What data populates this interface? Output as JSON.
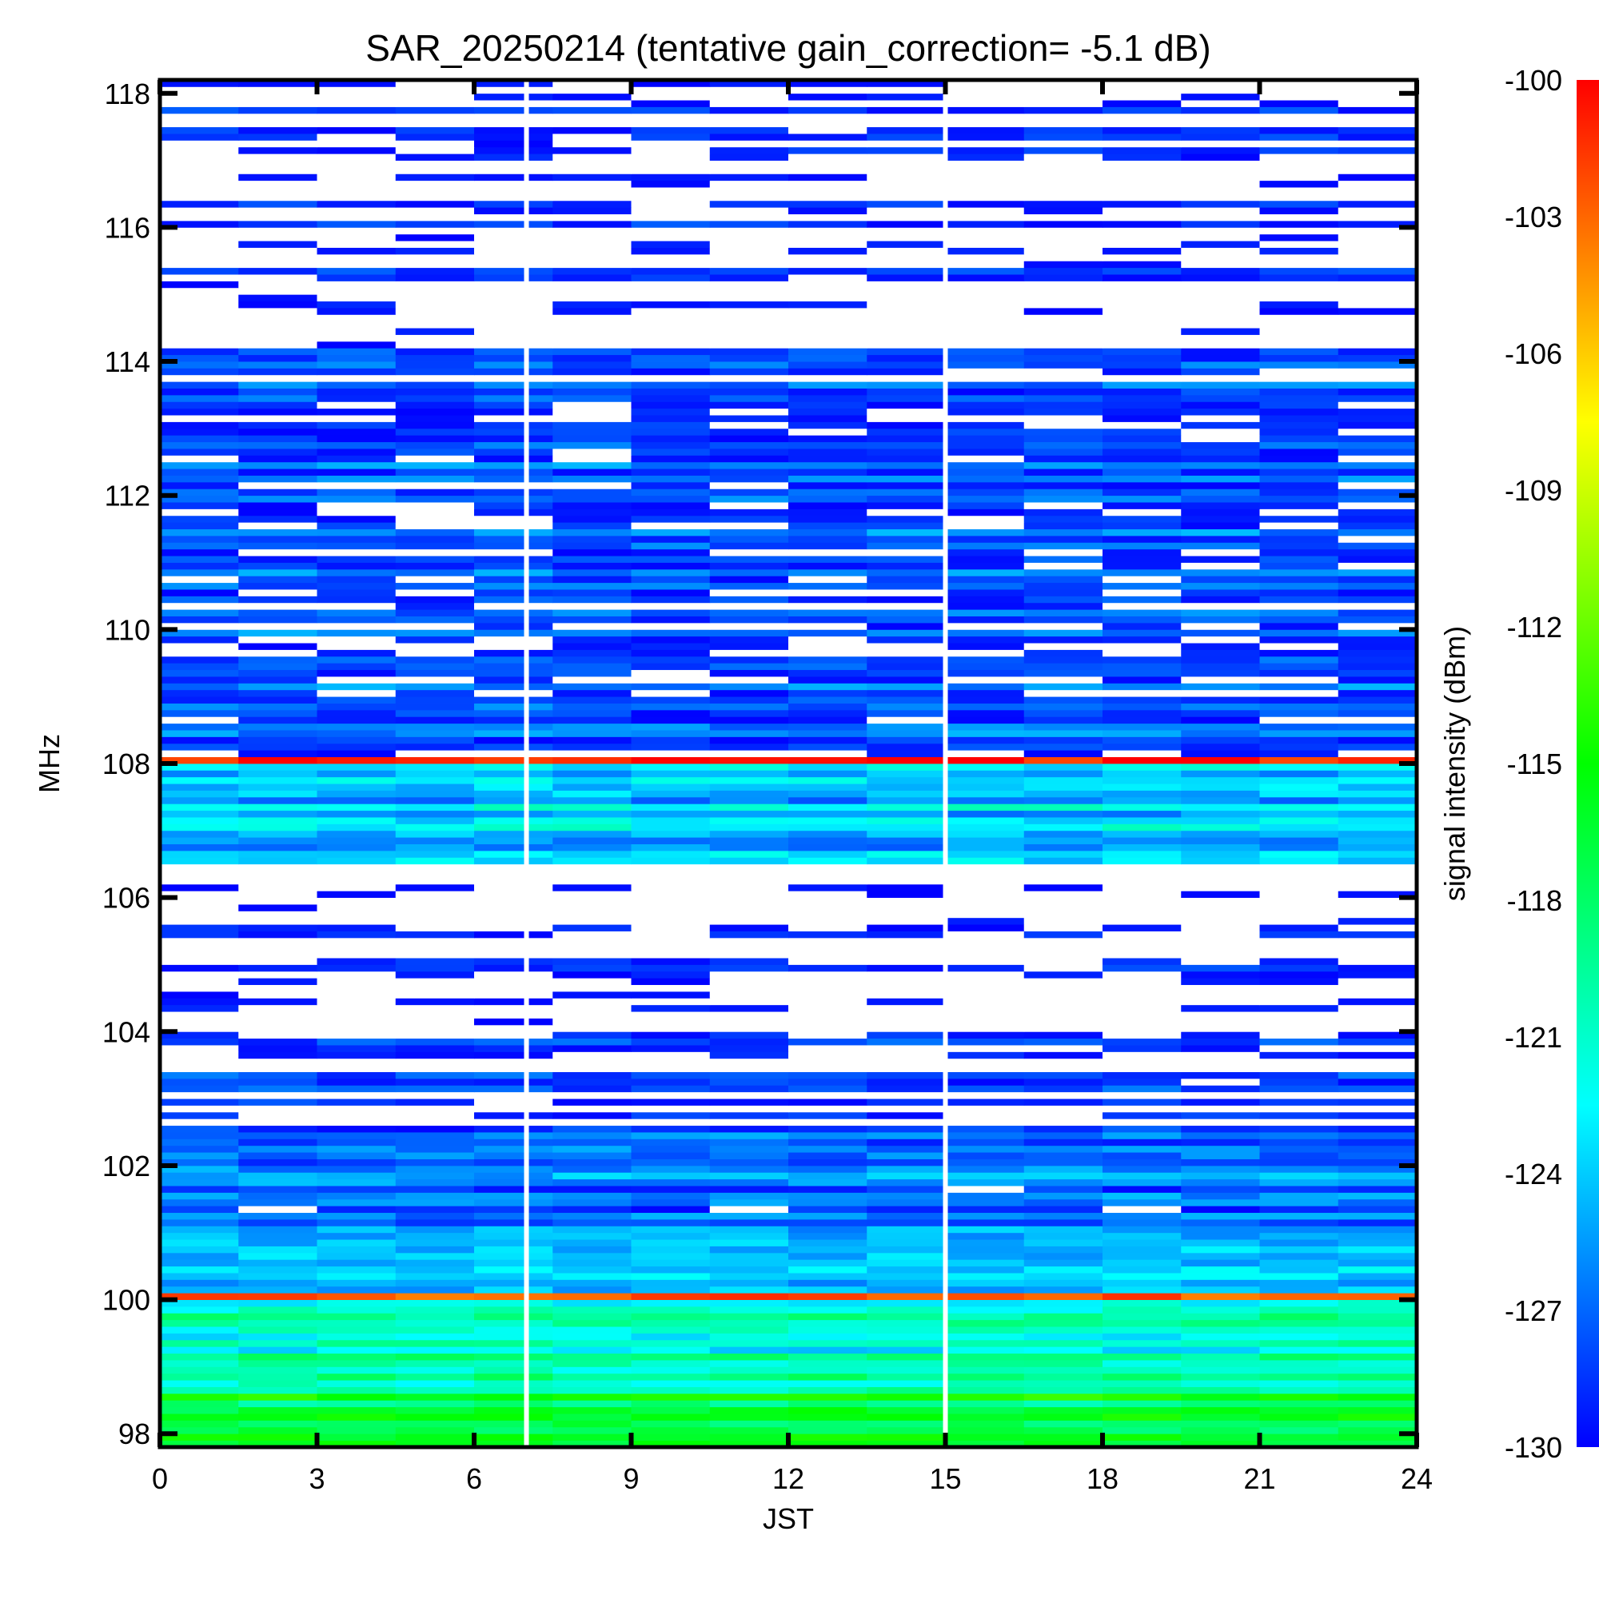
{
  "chart_data": {
    "type": "heatmap",
    "title": "SAR_20250214 (tentative gain_correction= -5.1 dB)",
    "xlabel": "JST",
    "ylabel": "MHz",
    "colorbar_label": "signal intensity (dBm)",
    "xlim": [
      0,
      24
    ],
    "ylim": [
      97.8,
      118.2
    ],
    "clim": [
      -130,
      -100
    ],
    "x_ticks": [
      0,
      3,
      6,
      9,
      12,
      15,
      18,
      21,
      24
    ],
    "y_ticks": [
      98,
      100,
      102,
      104,
      106,
      108,
      110,
      112,
      114,
      116,
      118
    ],
    "colorbar_ticks": [
      -100,
      -103,
      -106,
      -109,
      -112,
      -115,
      -118,
      -121,
      -124,
      -127,
      -130
    ],
    "colormap": [
      "#0000ff",
      "#0080ff",
      "#00ffff",
      "#00ff80",
      "#00ff00",
      "#80ff00",
      "#ffff00",
      "#ff8000",
      "#ff0000"
    ],
    "data_gaps_jst": [
      7.0,
      15.0
    ],
    "bands": [
      {
        "f_min": 97.8,
        "f_max": 98.6,
        "level": -117,
        "note": "yellow-green floor"
      },
      {
        "f_min": 98.6,
        "f_max": 100.0,
        "level": -121
      },
      {
        "f_min": 100.0,
        "f_max": 100.1,
        "level": -100,
        "note": "strong carrier"
      },
      {
        "f_min": 100.1,
        "f_max": 101.0,
        "level": -124
      },
      {
        "f_min": 101.0,
        "f_max": 102.5,
        "level": -127
      },
      {
        "f_min": 102.5,
        "f_max": 104.3,
        "level": -130
      },
      {
        "f_min": 104.3,
        "f_max": 106.5,
        "level": -131
      },
      {
        "f_min": 106.5,
        "f_max": 108.0,
        "level": -124
      },
      {
        "f_min": 108.0,
        "f_max": 108.1,
        "level": -100,
        "note": "strong carrier, intermittent"
      },
      {
        "f_min": 108.1,
        "f_max": 112.5,
        "level": -128
      },
      {
        "f_min": 112.5,
        "f_max": 114.2,
        "level": -129
      },
      {
        "f_min": 114.2,
        "f_max": 118.2,
        "level": -131
      }
    ]
  }
}
